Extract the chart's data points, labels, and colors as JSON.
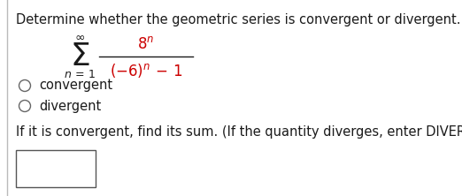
{
  "title": "Determine whether the geometric series is convergent or divergent.",
  "option1": "convergent",
  "option2": "divergent",
  "footer": "If it is convergent, find its sum. (If the quantity diverges, enter DIVERGES.)",
  "bg_color": "#ffffff",
  "text_color": "#1a1a1a",
  "red_color": "#cc0000",
  "title_fontsize": 10.5,
  "body_fontsize": 10.5,
  "formula_fontsize": 12,
  "sigma_fontsize": 26,
  "small_fontsize": 9
}
